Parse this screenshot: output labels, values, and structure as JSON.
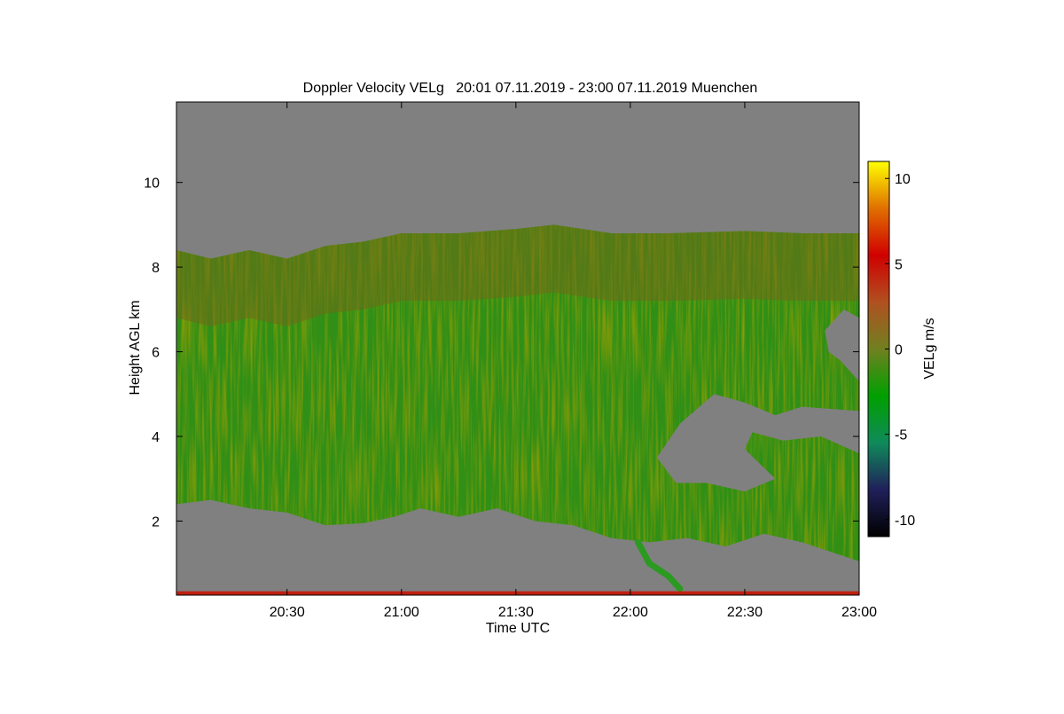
{
  "chart_data": {
    "type": "heatmap",
    "title": "Doppler Velocity VELg   20:01 07.11.2019 - 23:00 07.11.2019 Muenchen",
    "xlabel": "Time UTC",
    "ylabel": "Height AGL km",
    "x_ticks": [
      {
        "label": "20:30",
        "value": 30
      },
      {
        "label": "21:00",
        "value": 60
      },
      {
        "label": "21:30",
        "value": 90
      },
      {
        "label": "22:00",
        "value": 120
      },
      {
        "label": "22:30",
        "value": 150
      },
      {
        "label": "23:00",
        "value": 180
      }
    ],
    "xlim_minutes_since_2000": [
      1,
      180
    ],
    "y_ticks": [
      2,
      4,
      6,
      8,
      10
    ],
    "ylim": [
      0.25,
      11.9
    ],
    "colorbar": {
      "label": "VELg m/s",
      "range": [
        -11,
        11
      ],
      "ticks": [
        10,
        5,
        0,
        -5,
        -10
      ],
      "colors": [
        "#000000",
        "#20205a",
        "#0f8a5a",
        "#00a000",
        "#708020",
        "#b05020",
        "#d00000",
        "#e07000",
        "#ffff00"
      ]
    },
    "background_color": "#808080",
    "regions": [
      {
        "name": "main-cloud",
        "value_range": [
          -2,
          1
        ],
        "top": [
          [
            1,
            8.4
          ],
          [
            10,
            8.2
          ],
          [
            20,
            8.4
          ],
          [
            30,
            8.2
          ],
          [
            40,
            8.5
          ],
          [
            50,
            8.6
          ],
          [
            60,
            8.8
          ],
          [
            75,
            8.8
          ],
          [
            90,
            8.9
          ],
          [
            100,
            9.0
          ],
          [
            115,
            8.8
          ],
          [
            130,
            8.8
          ],
          [
            150,
            8.85
          ],
          [
            165,
            8.8
          ],
          [
            180,
            8.8
          ]
        ],
        "bottom": [
          [
            1,
            2.4
          ],
          [
            10,
            2.5
          ],
          [
            20,
            2.3
          ],
          [
            30,
            2.2
          ],
          [
            40,
            1.9
          ],
          [
            50,
            1.95
          ],
          [
            58,
            2.1
          ],
          [
            65,
            2.3
          ],
          [
            75,
            2.1
          ],
          [
            85,
            2.3
          ],
          [
            95,
            2.0
          ],
          [
            105,
            1.9
          ],
          [
            115,
            1.6
          ],
          [
            125,
            1.5
          ],
          [
            135,
            1.6
          ],
          [
            145,
            1.4
          ],
          [
            155,
            1.7
          ],
          [
            165,
            1.5
          ],
          [
            175,
            1.2
          ],
          [
            180,
            1.05
          ]
        ]
      }
    ],
    "gaps": [
      {
        "name": "clear-pocket-22h",
        "outline": [
          [
            127,
            3.5
          ],
          [
            133,
            4.3
          ],
          [
            142,
            5.0
          ],
          [
            150,
            4.8
          ],
          [
            158,
            4.5
          ],
          [
            165,
            4.7
          ],
          [
            180,
            4.6
          ],
          [
            180,
            3.6
          ],
          [
            170,
            4.0
          ],
          [
            160,
            3.9
          ],
          [
            152,
            4.1
          ],
          [
            150,
            3.7
          ],
          [
            158,
            3.0
          ],
          [
            150,
            2.7
          ],
          [
            140,
            2.9
          ],
          [
            132,
            2.9
          ]
        ]
      },
      {
        "name": "clear-notch-23h",
        "outline": [
          [
            171,
            6.5
          ],
          [
            176,
            7.0
          ],
          [
            180,
            6.8
          ],
          [
            180,
            5.3
          ],
          [
            175,
            5.8
          ],
          [
            172,
            6.0
          ]
        ]
      }
    ],
    "features": [
      {
        "name": "fall-streak",
        "points": [
          [
            122,
            1.5
          ],
          [
            125,
            1.0
          ],
          [
            130,
            0.7
          ],
          [
            133,
            0.4
          ]
        ]
      },
      {
        "name": "ground-clutter-line",
        "height": 0.3
      }
    ]
  }
}
